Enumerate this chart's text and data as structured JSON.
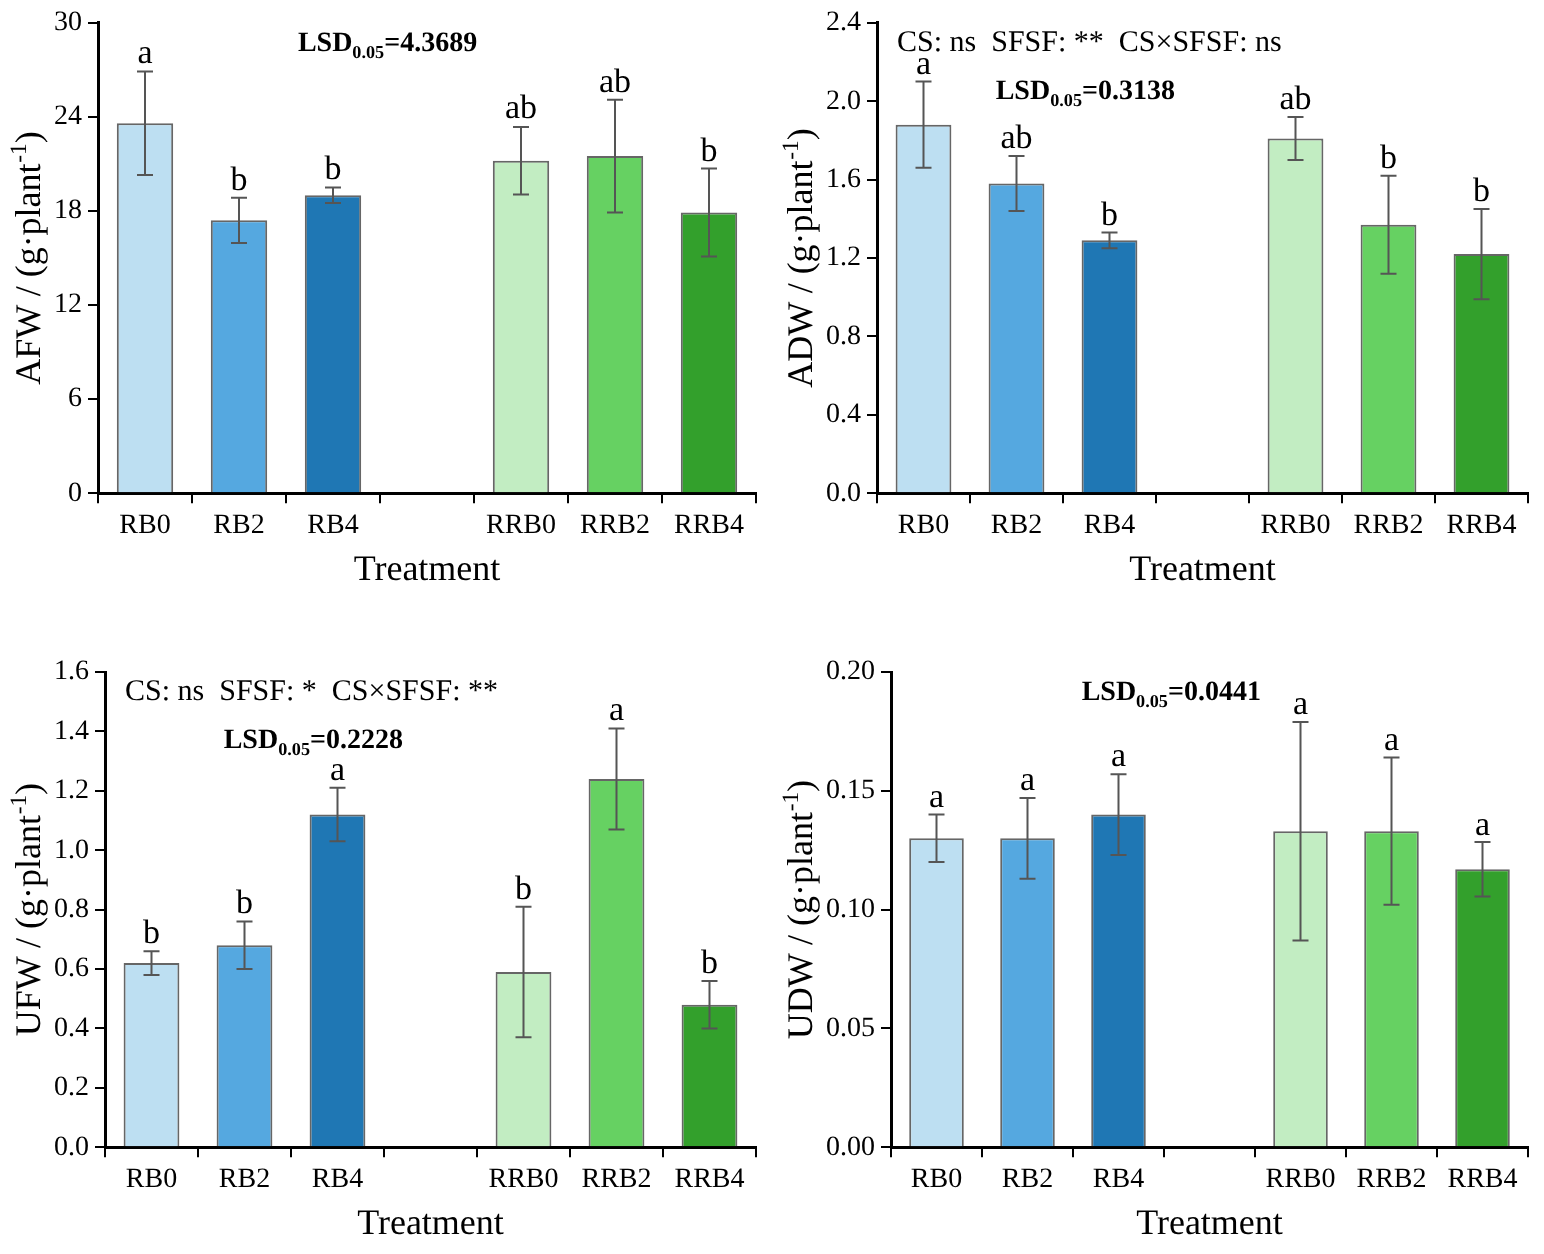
{
  "chart_data": [
    {
      "type": "bar",
      "xlabel": "Treatment",
      "ylabel": "AFW / (g·plant$^{-1}$)",
      "categories": [
        "RB0",
        "RB2",
        "RB4",
        null,
        "RRB0",
        "RRB2",
        "RRB4"
      ],
      "values": [
        23.6,
        17.4,
        19.0,
        null,
        21.2,
        21.5,
        17.9
      ],
      "colors": [
        "#bddff2",
        "#55a8e0",
        "#1f77b4",
        "#ffffff",
        "#c2edc2",
        "#66d162",
        "#33a02c"
      ],
      "errors": [
        3.3,
        1.45,
        0.5,
        null,
        2.15,
        3.6,
        2.8
      ],
      "ylim": [
        0,
        30
      ],
      "yticks": [
        0,
        6,
        12,
        18,
        24,
        30
      ],
      "annotations": [
        "LSD$_{0.05}$=4.3689",
        {
          "text": "a",
          "x": "RB0",
          "y": 26.9
        },
        {
          "text": "b",
          "x": "RB2",
          "y": 18.8
        },
        {
          "text": "b",
          "x": "RB4",
          "y": 19.5
        },
        {
          "text": "ab",
          "x": "RRB0",
          "y": 23.4
        },
        {
          "text": "ab",
          "x": "RRB2",
          "y": 25.1
        },
        {
          "text": "b",
          "x": "RRB4",
          "y": 20.7
        }
      ]
    },
    {
      "type": "bar",
      "xlabel": "Treatment",
      "ylabel": "ADW / (g·plant$^{-1}$)",
      "categories": [
        "RB0",
        "RB2",
        "RB4",
        null,
        "RRB0",
        "RRB2",
        "RRB4"
      ],
      "values": [
        1.88,
        1.58,
        1.29,
        null,
        1.81,
        1.37,
        1.22
      ],
      "colors": [
        "#bddff2",
        "#55a8e0",
        "#1f77b4",
        "#ffffff",
        "#c2edc2",
        "#66d162",
        "#33a02c"
      ],
      "errors": [
        0.22,
        0.14,
        0.04,
        null,
        0.11,
        0.25,
        0.23
      ],
      "ylim": [
        0,
        2.4
      ],
      "yticks": [
        {
          "value": 0,
          "label": "0.0"
        },
        0.4,
        0.8,
        1.2,
        1.6,
        {
          "value": 2,
          "label": "2.0"
        },
        2.4
      ],
      "annotations": [
        "CS: ns  SFSF: **  CS×SFSF: ns",
        "LSD$_{0.05}$=0.3138",
        {
          "text": "a",
          "x": "RB0",
          "y": 2.1
        },
        {
          "text": "ab",
          "x": "RB2",
          "y": 1.72
        },
        {
          "text": "b",
          "x": "RB4",
          "y": 1.33
        },
        {
          "text": "ab",
          "x": "RRB0",
          "y": 1.92
        },
        {
          "text": "b",
          "x": "RRB2",
          "y": 1.62
        },
        {
          "text": "b",
          "x": "RRB4",
          "y": 1.45
        }
      ]
    },
    {
      "type": "bar",
      "xlabel": "Treatment",
      "ylabel": "UFW / (g·plant$^{-1}$)",
      "categories": [
        "RB0",
        "RB2",
        "RB4",
        null,
        "RRB0",
        "RRB2",
        "RRB4"
      ],
      "values": [
        0.62,
        0.68,
        1.12,
        null,
        0.59,
        1.24,
        0.48
      ],
      "colors": [
        "#bddff2",
        "#55a8e0",
        "#1f77b4",
        "#ffffff",
        "#c2edc2",
        "#66d162",
        "#33a02c"
      ],
      "errors": [
        0.04,
        0.08,
        0.09,
        null,
        0.22,
        0.17,
        0.08
      ],
      "ylim": [
        0,
        1.6
      ],
      "yticks": [
        {
          "value": 0,
          "label": "0.0"
        },
        0.2,
        0.4,
        0.6,
        0.8,
        {
          "value": 1,
          "label": "1.0"
        },
        1.2,
        1.4,
        1.6
      ],
      "annotations": [
        "CS: ns  SFSF: *  CS×SFSF: **",
        "LSD$_{0.05}$=0.2228",
        {
          "text": "b",
          "x": "RB0",
          "y": 0.66
        },
        {
          "text": "b",
          "x": "RB2",
          "y": 0.76
        },
        {
          "text": "a",
          "x": "RB4",
          "y": 1.21
        },
        {
          "text": "b",
          "x": "RRB0",
          "y": 0.81
        },
        {
          "text": "a",
          "x": "RRB2",
          "y": 1.41
        },
        {
          "text": "b",
          "x": "RRB4",
          "y": 0.56
        }
      ]
    },
    {
      "type": "bar",
      "xlabel": "Treatment",
      "ylabel": "UDW / (g·plant$^{-1}$)",
      "categories": [
        "RB0",
        "RB2",
        "RB4",
        null,
        "RRB0",
        "RRB2",
        "RRB4"
      ],
      "values": [
        0.13,
        0.13,
        0.14,
        null,
        0.133,
        0.133,
        0.117
      ],
      "colors": [
        "#bddff2",
        "#55a8e0",
        "#1f77b4",
        "#ffffff",
        "#c2edc2",
        "#66d162",
        "#33a02c"
      ],
      "errors": [
        0.01,
        0.017,
        0.017,
        null,
        0.046,
        0.031,
        0.0115
      ],
      "ylim": [
        0,
        0.2
      ],
      "yticks": [
        {
          "value": 0,
          "label": "0.00"
        },
        {
          "value": 0.05,
          "label": "0.05"
        },
        {
          "value": 0.1,
          "label": "0.10"
        },
        {
          "value": 0.15,
          "label": "0.15"
        },
        {
          "value": 0.2,
          "label": "0.20"
        }
      ],
      "annotations": [
        "LSD$_{0.05}$=0.0441",
        {
          "text": "a",
          "x": "RB0",
          "y": 0.14
        },
        {
          "text": "a",
          "x": "RB2",
          "y": 0.147
        },
        {
          "text": "a",
          "x": "RB4",
          "y": 0.157
        },
        {
          "text": "a",
          "x": "RRB0",
          "y": 0.179
        },
        {
          "text": "a",
          "x": "RRB2",
          "y": 0.164
        },
        {
          "text": "a",
          "x": "RRB4",
          "y": 0.128
        }
      ]
    }
  ]
}
